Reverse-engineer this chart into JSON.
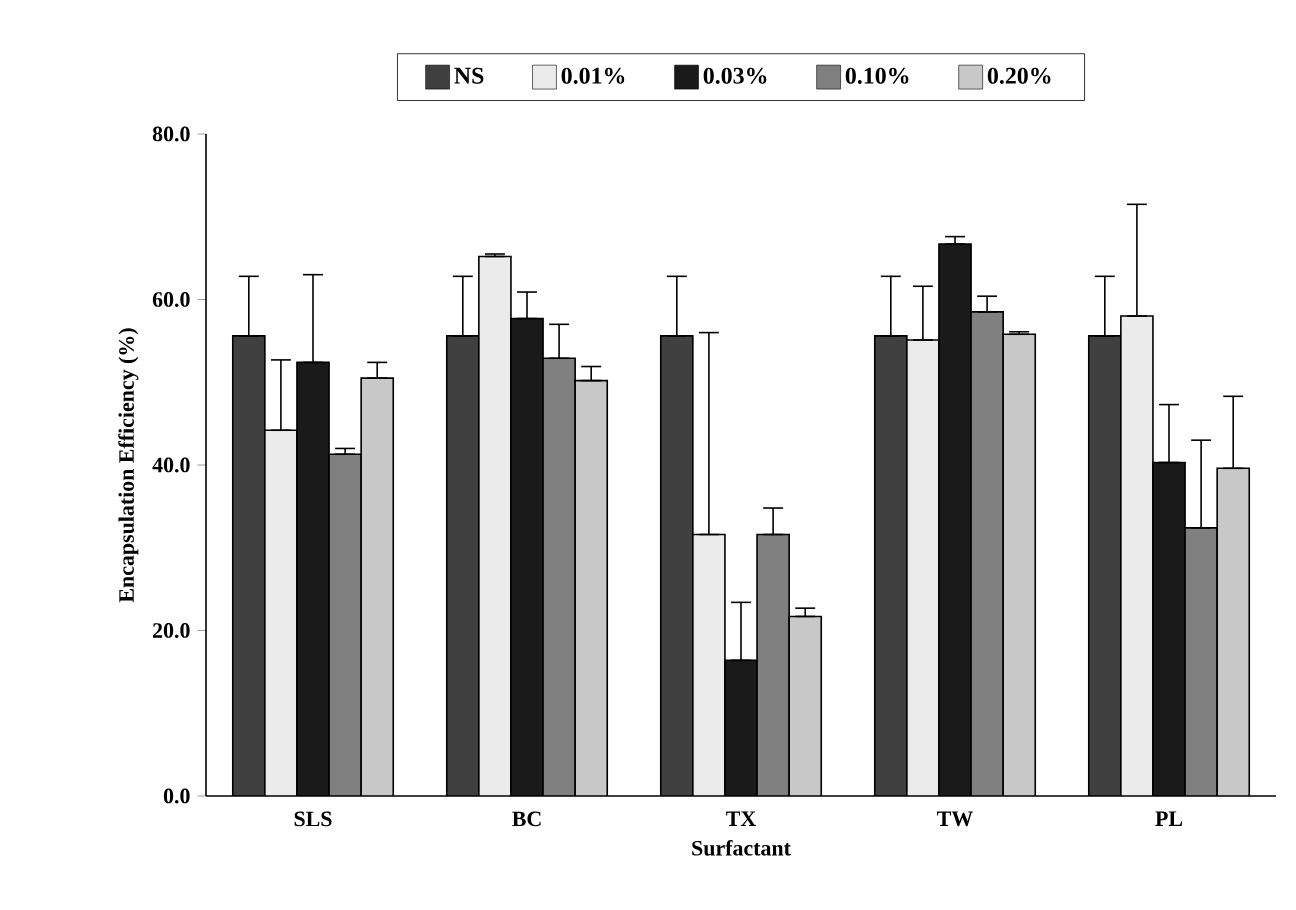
{
  "chart_data": {
    "type": "bar",
    "xlabel": "Surfactant",
    "ylabel": "Encapsulation Efficiency (%)",
    "categories": [
      "SLS",
      "BC",
      "TX",
      "TW",
      "PL"
    ],
    "ylim": [
      0,
      80
    ],
    "yticks": [
      {
        "value": 0,
        "label": "0.0"
      },
      {
        "value": 20,
        "label": "20.0"
      },
      {
        "value": 40,
        "label": "40.0"
      },
      {
        "value": 60,
        "label": "60.0"
      },
      {
        "value": 80,
        "label": "80.0"
      }
    ],
    "legend": "top",
    "grid": false,
    "series": [
      {
        "name": "NS",
        "color": "#404040",
        "values": [
          55.6,
          55.6,
          55.6,
          55.6,
          55.6
        ],
        "errors": [
          [
            55.6,
            62.8
          ],
          [
            55.6,
            62.8
          ],
          [
            55.6,
            62.8
          ],
          [
            55.6,
            62.8
          ],
          [
            55.6,
            62.8
          ]
        ]
      },
      {
        "name": "0.01%",
        "color": "#ebebeb",
        "values": [
          44.2,
          65.2,
          31.6,
          55.1,
          58.0
        ],
        "errors": [
          [
            44.2,
            52.7
          ],
          [
            65.2,
            65.5
          ],
          [
            31.6,
            56.0
          ],
          [
            55.1,
            61.6
          ],
          [
            58.0,
            71.5
          ]
        ]
      },
      {
        "name": "0.03%",
        "color": "#1a1a1a",
        "values": [
          52.4,
          57.7,
          16.4,
          66.7,
          40.3
        ],
        "errors": [
          [
            52.4,
            63.0
          ],
          [
            57.7,
            60.9
          ],
          [
            16.4,
            23.4
          ],
          [
            66.7,
            67.6
          ],
          [
            40.3,
            47.3
          ]
        ]
      },
      {
        "name": "0.10%",
        "color": "#808080",
        "values": [
          41.3,
          52.9,
          31.6,
          58.5,
          32.4
        ],
        "errors": [
          [
            41.3,
            42.0
          ],
          [
            52.9,
            57.0
          ],
          [
            31.6,
            34.8
          ],
          [
            58.5,
            60.4
          ],
          [
            32.4,
            43.0
          ]
        ]
      },
      {
        "name": "0.20%",
        "color": "#c8c8c8",
        "values": [
          50.5,
          50.2,
          21.7,
          55.8,
          39.6
        ],
        "errors": [
          [
            50.5,
            52.4
          ],
          [
            50.2,
            51.9
          ],
          [
            21.7,
            22.7
          ],
          [
            55.8,
            56.1
          ],
          [
            39.6,
            48.3
          ]
        ]
      }
    ]
  }
}
